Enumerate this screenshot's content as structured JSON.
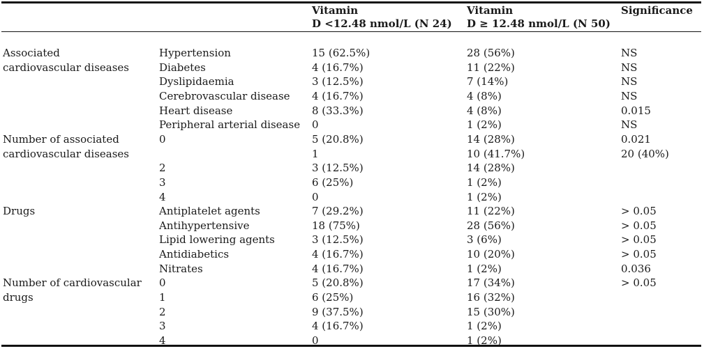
{
  "header": {
    "col3_line1": "Vitamin",
    "col3_line2": "D <12.48 nmol/L (N 24)",
    "col4_line1": "Vitamin",
    "col4_line2": "D ≥ 12.48 nmol/L (N 50)",
    "col5": "Significance"
  },
  "groups": {
    "cardio_line1": "Associated",
    "cardio_line2": "cardiovascular diseases",
    "numcardio_line1": "Number of associated",
    "numcardio_line2": "cardiovascular diseases",
    "drugs": "Drugs",
    "numdrugs_line1": "Number of cardiovascular",
    "numdrugs_line2": "drugs"
  },
  "rows": [
    {
      "item": "Hypertension",
      "low": "15 (62.5%)",
      "high": "28 (56%)",
      "sig": "NS"
    },
    {
      "item": "Diabetes",
      "low": "4 (16.7%)",
      "high": "11 (22%)",
      "sig": "NS"
    },
    {
      "item": "Dyslipidaemia",
      "low": "3 (12.5%)",
      "high": "7 (14%)",
      "sig": "NS"
    },
    {
      "item": "Cerebrovascular disease",
      "low": "4 (16.7%)",
      "high": "4 (8%)",
      "sig": "NS"
    },
    {
      "item": "Heart disease",
      "low": "8 (33.3%)",
      "high": "4 (8%)",
      "sig": "0.015"
    },
    {
      "item": "Peripheral arterial disease",
      "low": "0",
      "high": "1 (2%)",
      "sig": "NS"
    },
    {
      "item": "0",
      "low": "5 (20.8%)",
      "high": "14 (28%)",
      "sig": "0.021"
    },
    {
      "item": "",
      "low": "1",
      "high": "10 (41.7%)",
      "sig": "20 (40%)"
    },
    {
      "item": "2",
      "low": "3 (12.5%)",
      "high": "14 (28%)",
      "sig": ""
    },
    {
      "item": "3",
      "low": "6 (25%)",
      "high": "1 (2%)",
      "sig": ""
    },
    {
      "item": "4",
      "low": "0",
      "high": "1 (2%)",
      "sig": ""
    },
    {
      "item": "Antiplatelet agents",
      "low": "7 (29.2%)",
      "high": "11 (22%)",
      "sig": "> 0.05"
    },
    {
      "item": "Antihypertensive",
      "low": "18 (75%)",
      "high": "28 (56%)",
      "sig": "> 0.05"
    },
    {
      "item": "Lipid lowering agents",
      "low": "3 (12.5%)",
      "high": "3 (6%)",
      "sig": "> 0.05"
    },
    {
      "item": "Antidiabetics",
      "low": "4 (16.7%)",
      "high": "10 (20%)",
      "sig": "> 0.05"
    },
    {
      "item": "Nitrates",
      "low": "4 (16.7%)",
      "high": "1 (2%)",
      "sig": "0.036"
    },
    {
      "item": "0",
      "low": "5 (20.8%)",
      "high": "17 (34%)",
      "sig": "> 0.05"
    },
    {
      "item": "1",
      "low": "6 (25%)",
      "high": "16 (32%)",
      "sig": ""
    },
    {
      "item": "2",
      "low": "9 (37.5%)",
      "high": "15 (30%)",
      "sig": ""
    },
    {
      "item": "3",
      "low": "4 (16.7%)",
      "high": "1 (2%)",
      "sig": ""
    },
    {
      "item": "4",
      "low": "0",
      "high": "1 (2%)",
      "sig": ""
    }
  ]
}
